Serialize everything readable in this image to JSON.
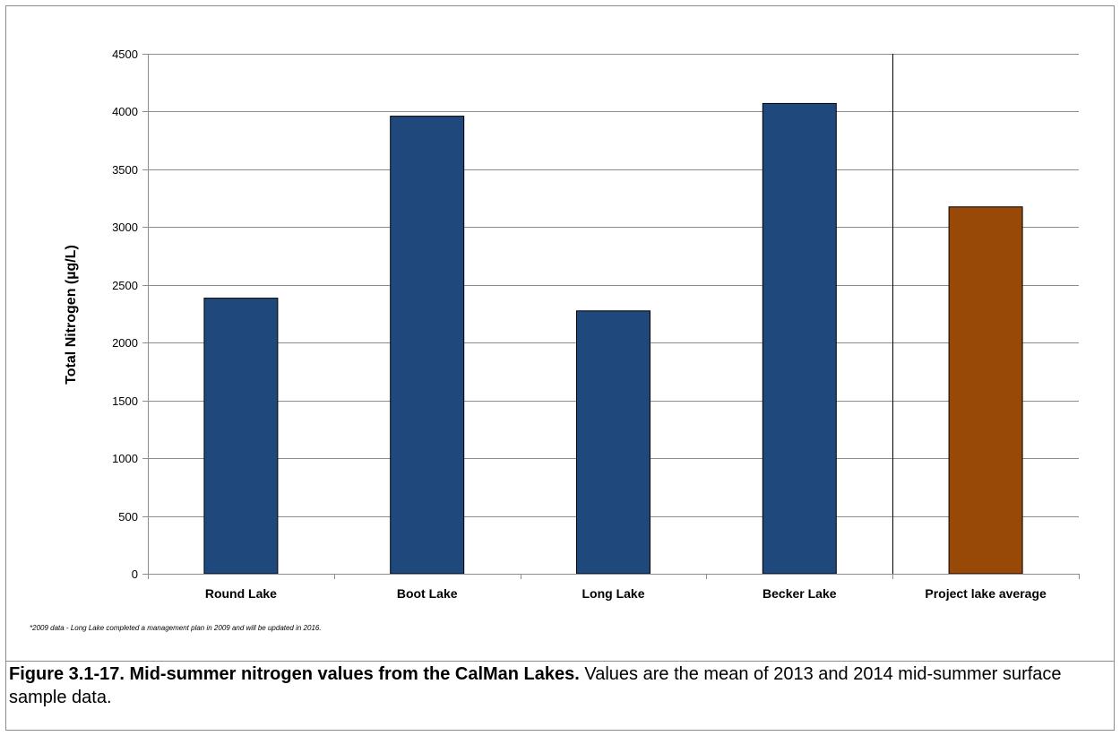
{
  "chart_data": {
    "type": "bar",
    "categories": [
      "Round Lake",
      "Boot Lake",
      "Long Lake",
      "Becker Lake",
      "Project lake average"
    ],
    "values": [
      2385,
      3960,
      2275,
      4070,
      3175
    ],
    "colors": [
      "#1f497d",
      "#1f497d",
      "#1f497d",
      "#1f497d",
      "#984807"
    ],
    "title": "",
    "xlabel": "",
    "ylabel": "Total Nitrogen (µg/L)",
    "ylim": [
      0,
      4500
    ],
    "yticks": [
      0,
      500,
      1000,
      1500,
      2000,
      2500,
      3000,
      3500,
      4000,
      4500
    ],
    "grid": true,
    "separator_before_category": "Project lake average"
  },
  "footnote": "*2009 data - Long Lake completed a management plan in 2009 and will be updated in 2016.",
  "caption": {
    "label": "Figure 3.1-17.  Mid-summer nitrogen values from the CalMan Lakes.",
    "text": "  Values are the mean of 2013 and 2014 mid-summer surface sample data."
  }
}
